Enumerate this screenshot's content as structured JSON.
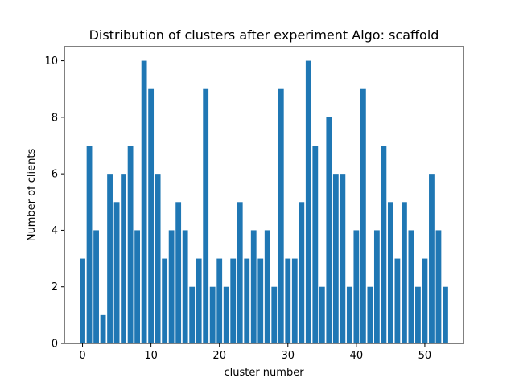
{
  "chart_data": {
    "type": "bar",
    "title": "Distribution of clusters after experiment Algo: scaffold",
    "xlabel": "cluster number",
    "ylabel": "Number of clients",
    "xlim": [
      -2.65,
      55.65
    ],
    "ylim": [
      0,
      10.5
    ],
    "x_ticks": [
      0,
      10,
      20,
      30,
      40,
      50
    ],
    "y_ticks": [
      0,
      2,
      4,
      6,
      8,
      10
    ],
    "grid": false,
    "color": "#1f77b4",
    "categories": [
      0,
      1,
      2,
      3,
      4,
      5,
      6,
      7,
      8,
      9,
      10,
      11,
      12,
      13,
      14,
      15,
      16,
      17,
      18,
      19,
      20,
      21,
      22,
      23,
      24,
      25,
      26,
      27,
      28,
      29,
      30,
      31,
      32,
      33,
      34,
      35,
      36,
      37,
      38,
      39,
      40,
      41,
      42,
      43,
      44,
      45,
      46,
      47,
      48,
      49,
      50,
      51,
      52,
      53
    ],
    "values": [
      3,
      7,
      4,
      1,
      6,
      5,
      6,
      7,
      4,
      10,
      9,
      6,
      3,
      4,
      5,
      4,
      2,
      3,
      9,
      2,
      3,
      2,
      3,
      5,
      3,
      4,
      3,
      4,
      2,
      9,
      3,
      3,
      5,
      10,
      7,
      2,
      8,
      6,
      6,
      2,
      4,
      9,
      2,
      4,
      7,
      5,
      3,
      5,
      4,
      2,
      3,
      6,
      4,
      2
    ]
  }
}
